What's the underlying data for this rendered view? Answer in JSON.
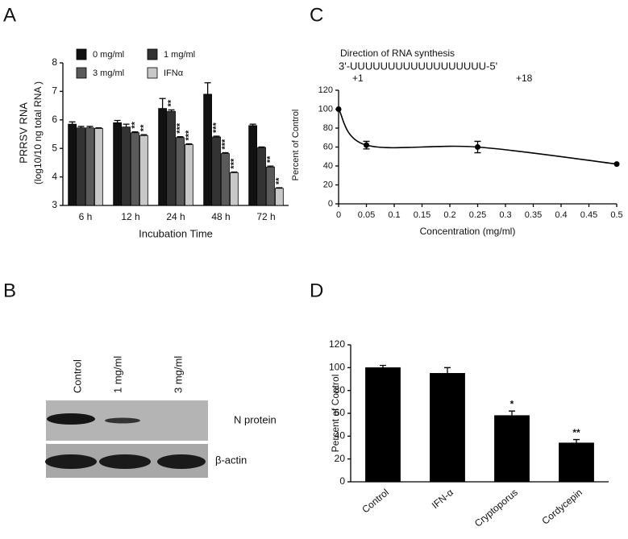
{
  "chart_data": [
    {
      "type": "bar",
      "panel": "A",
      "ylabel": "PRRSV RNA",
      "ylabel2": "(log10/10 ng total RNA )",
      "xlabel": "Incubation Time",
      "categories": [
        "6 h",
        "12 h",
        "24 h",
        "48 h",
        "72 h"
      ],
      "series": [
        {
          "name": "0 mg/ml",
          "color": "#111111",
          "values": [
            5.85,
            5.9,
            6.4,
            6.9,
            5.8
          ],
          "errors": [
            0.08,
            0.08,
            0.35,
            0.4,
            0.05
          ],
          "annotations": [
            null,
            null,
            null,
            null,
            null
          ]
        },
        {
          "name": "1 mg/ml",
          "color": "#333333",
          "values": [
            5.72,
            5.75,
            6.3,
            5.4,
            5.03
          ],
          "errors": [
            0.05,
            0.1,
            0.05,
            0.03,
            0.02
          ],
          "annotations": [
            null,
            null,
            "**",
            "***",
            null
          ]
        },
        {
          "name": "3 mg/ml",
          "color": "#5a5a5a",
          "values": [
            5.72,
            5.55,
            5.38,
            4.82,
            4.35
          ],
          "errors": [
            0.05,
            0.03,
            0.03,
            0.03,
            0.03
          ],
          "annotations": [
            null,
            "**",
            "***",
            "***",
            "**"
          ]
        },
        {
          "name": "IFNα",
          "color": "#c8c8c8",
          "values": [
            5.7,
            5.45,
            5.13,
            4.15,
            3.6
          ],
          "errors": [
            0.02,
            0.03,
            0.03,
            0.02,
            0.02
          ],
          "annotations": [
            null,
            "**",
            "***",
            "***",
            "**"
          ]
        }
      ],
      "ylim": [
        3,
        8
      ],
      "yticks": [
        3,
        4,
        5,
        6,
        7,
        8
      ]
    },
    {
      "type": "line",
      "panel": "C",
      "annotation": "Direction of RNA synthesis",
      "sequence": "3'-UUUUUUUUUUUUUUUUUU-5'",
      "start_label": "+1",
      "end_label": "+18",
      "xlabel": "Concentration (mg/ml)",
      "ylabel": "Percent of Control",
      "x": [
        0,
        0.05,
        0.25,
        0.5
      ],
      "values": [
        100,
        62,
        60,
        42
      ],
      "errors": [
        0,
        4,
        6,
        0
      ],
      "color": "#000000",
      "xlim": [
        0,
        0.5
      ],
      "xticks": [
        0,
        0.05,
        0.1,
        0.15,
        0.2,
        0.25,
        0.3,
        0.35,
        0.4,
        0.45,
        0.5
      ],
      "ylim": [
        0,
        120
      ],
      "yticks": [
        0,
        20,
        40,
        60,
        80,
        100,
        120
      ]
    },
    {
      "type": "bar",
      "panel": "D",
      "ylabel": "Percent of Control",
      "categories": [
        "Control",
        "IFN-α",
        "Cryptoporus",
        "Cordycepin"
      ],
      "values": [
        100,
        95,
        58,
        34
      ],
      "errors": [
        2,
        5,
        4,
        3
      ],
      "annotations": [
        null,
        null,
        "*",
        "**"
      ],
      "color": "#000000",
      "ylim": [
        0,
        120
      ],
      "yticks": [
        0,
        20,
        40,
        60,
        80,
        100,
        120
      ]
    }
  ],
  "blot": {
    "panel": "B",
    "lanes": [
      "Control",
      "1 mg/ml",
      "3 mg/ml"
    ],
    "rows": [
      "N protein",
      "β-actin"
    ]
  }
}
